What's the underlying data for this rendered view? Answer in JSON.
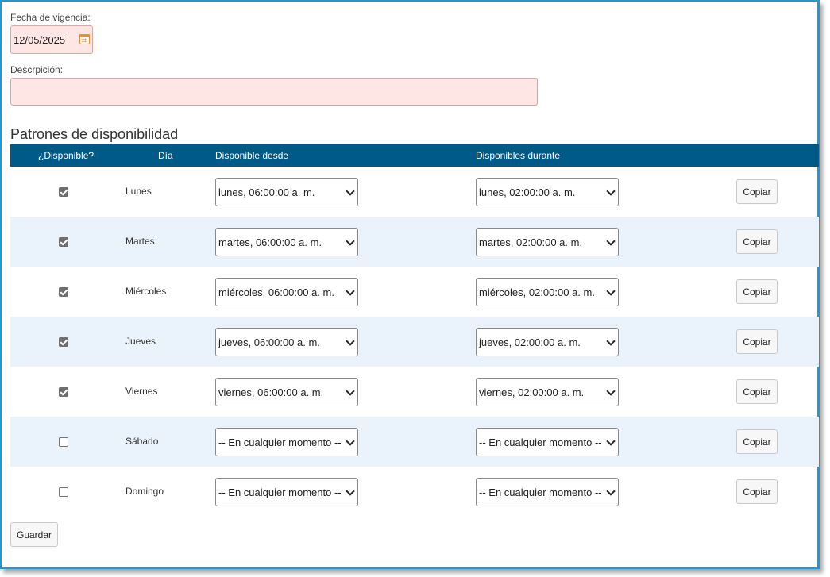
{
  "effective_date": {
    "label": "Fecha de vigencia:",
    "value": "12/05/2025"
  },
  "description": {
    "label": "Descrpición:",
    "value": ""
  },
  "section_title": "Patrones de disponibilidad",
  "table": {
    "headers": [
      "¿Disponible?",
      "Día",
      "Disponible desde",
      "Disponibles durante"
    ],
    "copy_label": "Copiar",
    "rows": [
      {
        "available": true,
        "day": "Lunes",
        "from": "lunes, 06:00:00 a. m.",
        "duration": "lunes, 02:00:00 a. m."
      },
      {
        "available": true,
        "day": "Martes",
        "from": "martes, 06:00:00 a. m.",
        "duration": "martes, 02:00:00 a. m."
      },
      {
        "available": true,
        "day": "Miércoles",
        "from": "miércoles, 06:00:00 a. m.",
        "duration": "miércoles, 02:00:00 a. m."
      },
      {
        "available": true,
        "day": "Jueves",
        "from": "jueves, 06:00:00 a. m.",
        "duration": "jueves, 02:00:00 a. m."
      },
      {
        "available": true,
        "day": "Viernes",
        "from": "viernes, 06:00:00 a. m.",
        "duration": "viernes, 02:00:00 a. m."
      },
      {
        "available": false,
        "day": "Sábado",
        "from": "-- En cualquier momento --",
        "duration": "-- En cualquier momento --"
      },
      {
        "available": false,
        "day": "Domingo",
        "from": "-- En cualquier momento --",
        "duration": "-- En cualquier momento --"
      }
    ]
  },
  "save_label": "Guardar",
  "colors": {
    "header_bg": "#005a87",
    "alt_row_bg": "#eaf3fb",
    "required_field_bg": "#fde6e4",
    "frame_border": "#1a9ad6"
  },
  "icons": {
    "date_picker": "calendar-icon",
    "select": "chevron-down-icon"
  }
}
